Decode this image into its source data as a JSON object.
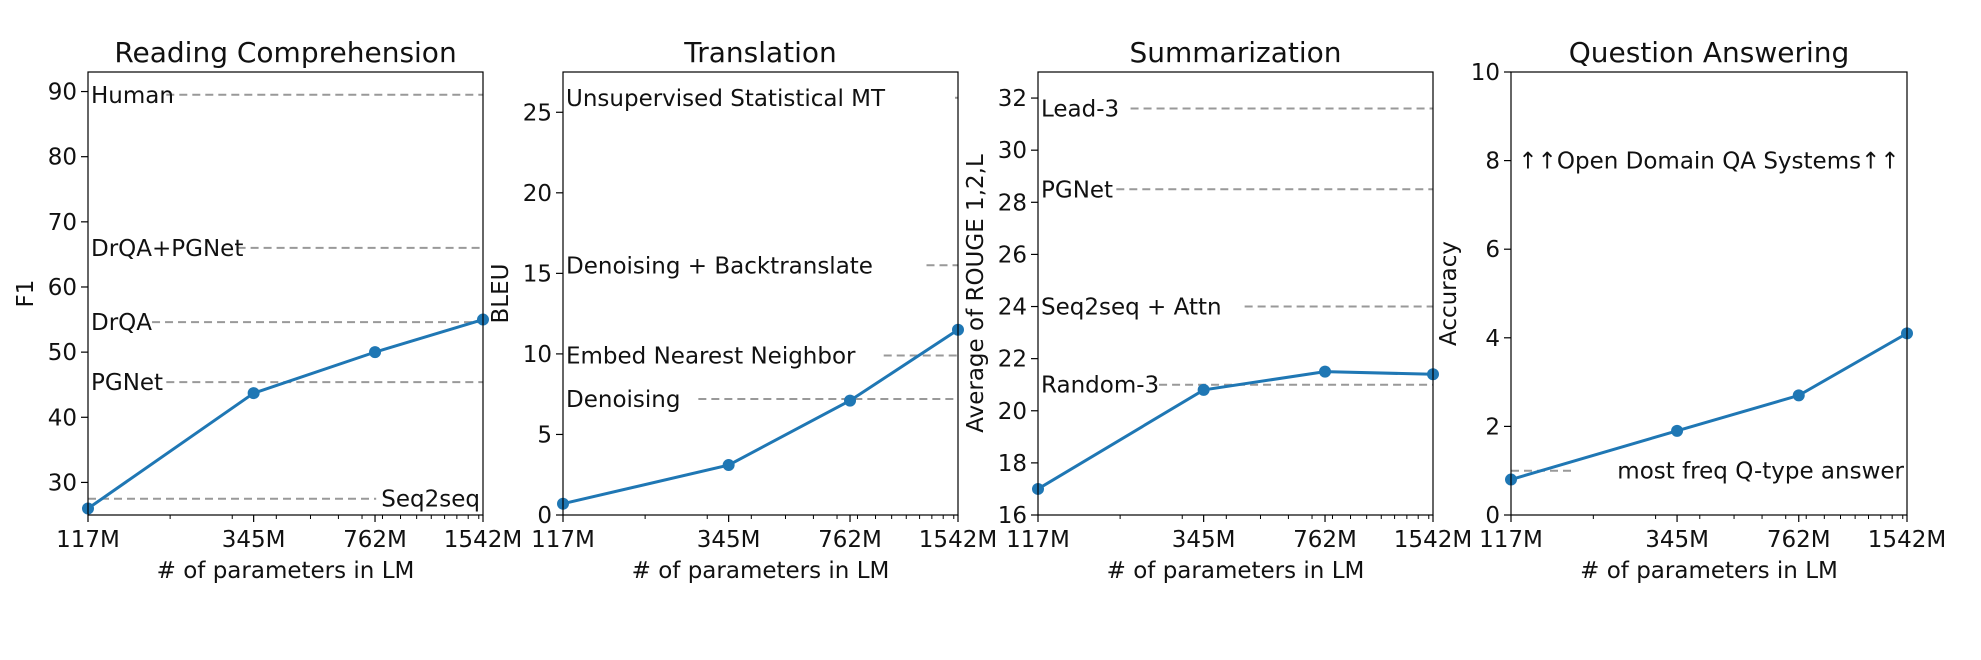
{
  "chart_data": [
    {
      "type": "line",
      "title": "Reading Comprehension",
      "xlabel": "# of parameters in LM",
      "ylabel": "F1",
      "x": [
        117,
        345,
        762,
        1542
      ],
      "x_tick_labels": [
        "117M",
        "345M",
        "762M",
        "1542M"
      ],
      "xscale": "log",
      "ylim": [
        25,
        93
      ],
      "yticks": [
        30,
        40,
        50,
        60,
        70,
        80,
        90
      ],
      "series": [
        {
          "values": [
            26.0,
            43.7,
            50.0,
            55.0
          ]
        }
      ],
      "baselines": [
        {
          "label": "Human",
          "value": 89.5,
          "label_side": "left"
        },
        {
          "label": "DrQA+PGNet",
          "value": 66.0,
          "label_side": "left"
        },
        {
          "label": "DrQA",
          "value": 54.6,
          "label_side": "left"
        },
        {
          "label": "PGNet",
          "value": 45.4,
          "label_side": "left"
        },
        {
          "label": "Seq2seq",
          "value": 27.5,
          "label_side": "right"
        }
      ],
      "line_color": "#1f77b4",
      "baseline_color": "#999999"
    },
    {
      "type": "line",
      "title": "Translation",
      "xlabel": "# of parameters in LM",
      "ylabel": "BLEU",
      "x": [
        117,
        345,
        762,
        1542
      ],
      "x_tick_labels": [
        "117M",
        "345M",
        "762M",
        "1542M"
      ],
      "xscale": "log",
      "ylim": [
        0,
        27.5
      ],
      "yticks": [
        0,
        5,
        10,
        15,
        20,
        25
      ],
      "series": [
        {
          "values": [
            0.7,
            3.1,
            7.1,
            11.5
          ]
        }
      ],
      "baselines": [
        {
          "label": "Unsupervised Statistical MT",
          "value": 25.9,
          "label_side": "left"
        },
        {
          "label": "Denoising + Backtranslate",
          "value": 15.5,
          "label_side": "left"
        },
        {
          "label": "Embed Nearest Neighbor",
          "value": 9.9,
          "label_side": "left"
        },
        {
          "label": "Denoising",
          "value": 7.2,
          "label_side": "left"
        }
      ],
      "line_color": "#1f77b4",
      "baseline_color": "#999999"
    },
    {
      "type": "line",
      "title": "Summarization",
      "xlabel": "# of parameters in LM",
      "ylabel": "Average of ROUGE 1,2,L",
      "x": [
        117,
        345,
        762,
        1542
      ],
      "x_tick_labels": [
        "117M",
        "345M",
        "762M",
        "1542M"
      ],
      "xscale": "log",
      "ylim": [
        16,
        33
      ],
      "yticks": [
        16,
        18,
        20,
        22,
        24,
        26,
        28,
        30,
        32
      ],
      "series": [
        {
          "values": [
            17.0,
            20.8,
            21.5,
            21.4
          ]
        }
      ],
      "baselines": [
        {
          "label": "Lead-3",
          "value": 31.6,
          "label_side": "left"
        },
        {
          "label": "PGNet",
          "value": 28.5,
          "label_side": "left"
        },
        {
          "label": "Seq2seq + Attn",
          "value": 24.0,
          "label_side": "left"
        },
        {
          "label": "Random-3",
          "value": 21.0,
          "label_side": "left"
        }
      ],
      "line_color": "#1f77b4",
      "baseline_color": "#999999"
    },
    {
      "type": "line",
      "title": "Question Answering",
      "xlabel": "# of parameters in LM",
      "ylabel": "Accuracy",
      "x": [
        117,
        345,
        762,
        1542
      ],
      "x_tick_labels": [
        "117M",
        "345M",
        "762M",
        "1542M"
      ],
      "xscale": "log",
      "ylim": [
        0,
        10
      ],
      "yticks": [
        0,
        2,
        4,
        6,
        8,
        10
      ],
      "series": [
        {
          "values": [
            0.8,
            1.9,
            2.7,
            4.1
          ]
        }
      ],
      "baselines": [
        {
          "label": "most freq Q-type answer",
          "value": 1.0,
          "label_side": "right"
        }
      ],
      "annotations": [
        {
          "text": "↑↑Open Domain QA Systems↑↑",
          "y": 8.0
        }
      ],
      "line_color": "#1f77b4",
      "baseline_color": "#999999"
    }
  ]
}
